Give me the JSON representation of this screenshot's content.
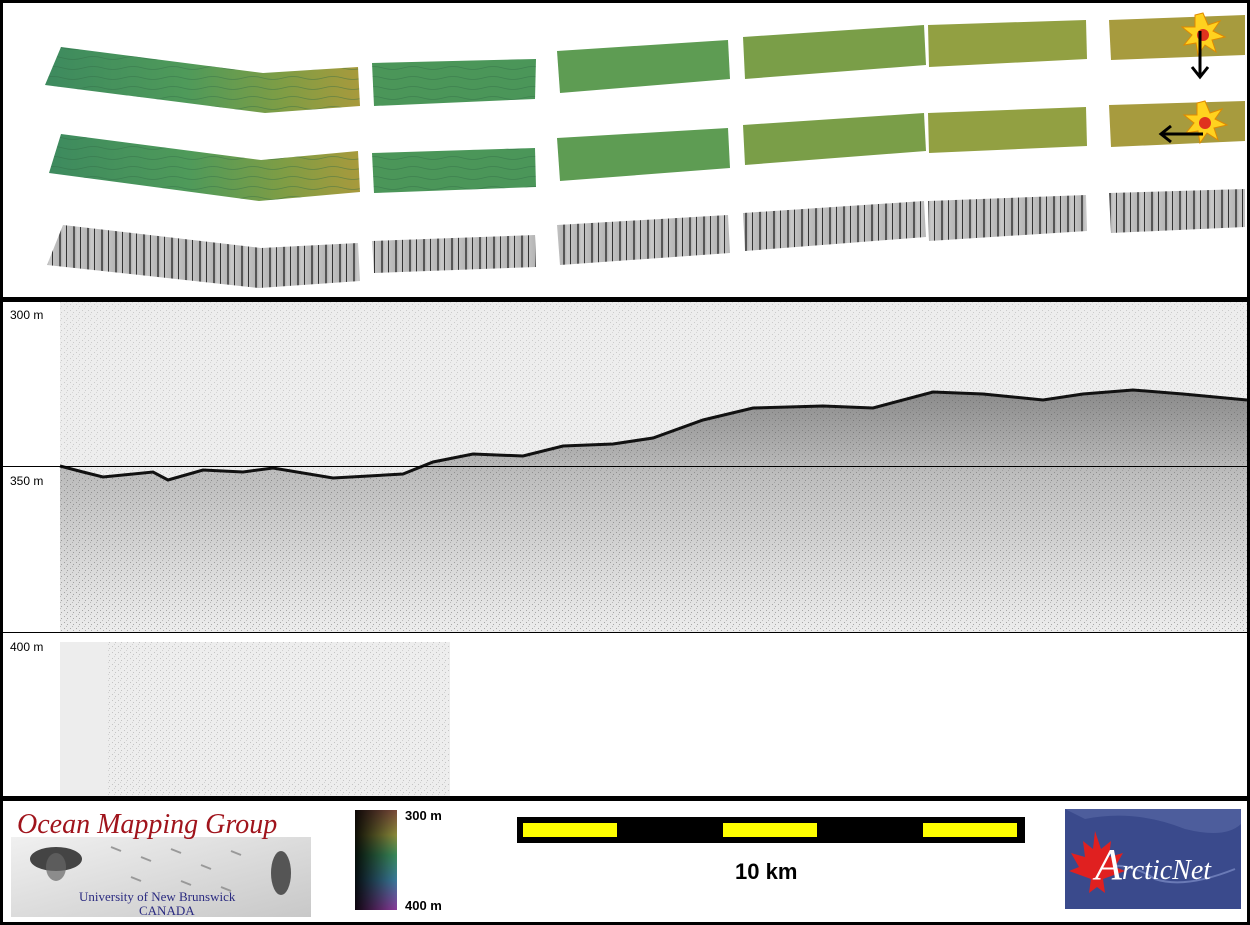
{
  "mosaics": {
    "strips": [
      {
        "name": "bathymetry-strip-north",
        "arrow": "down"
      },
      {
        "name": "bathymetry-strip-west",
        "arrow": "left"
      },
      {
        "name": "backscatter-strip",
        "arrow": null
      }
    ]
  },
  "profile": {
    "depth_labels": [
      "300 m",
      "350 m",
      "400 m"
    ]
  },
  "footer": {
    "logo_title": "Ocean Mapping Group",
    "logo_university": "University of New Brunswick",
    "logo_country": "CANADA",
    "colorbar_top": "300 m",
    "colorbar_bottom": "400 m",
    "scale_label": "10 km",
    "partner_logo": "ArcticNet",
    "partner_logo_first_letter": "A",
    "partner_logo_rest": "rcticNet"
  },
  "colors": {
    "bathy_deep": "#3c8a5a",
    "bathy_shallow": "#a79a3a",
    "scale_yellow": "#ffff00",
    "logo_red": "#a0141c",
    "arctic_blue": "#3a4a8c"
  }
}
